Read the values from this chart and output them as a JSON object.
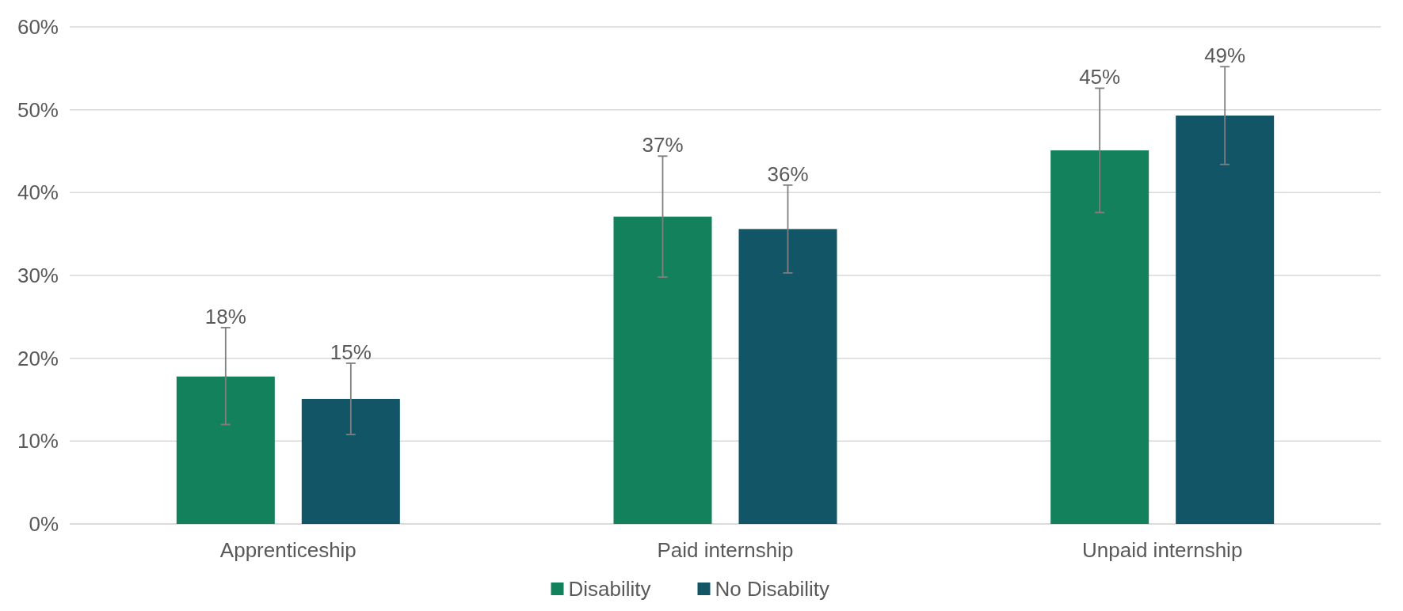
{
  "chart_data": {
    "type": "bar",
    "categories": [
      "Apprenticeship",
      "Paid internship",
      "Unpaid internship"
    ],
    "series": [
      {
        "name": "Disability",
        "color": "#13825c",
        "values": [
          17.8,
          37.1,
          45.1
        ],
        "errors": [
          [
            12,
            23.7
          ],
          [
            29.8,
            44.4
          ],
          [
            37.6,
            52.6
          ]
        ],
        "value_labels": [
          "18%",
          "37%",
          "45%"
        ]
      },
      {
        "name": "No Disability",
        "color": "#115566",
        "values": [
          15.1,
          35.6,
          49.3
        ],
        "errors": [
          [
            10.8,
            19.4
          ],
          [
            30.3,
            40.9
          ],
          [
            43.4,
            55.2
          ]
        ],
        "value_labels": [
          "15%",
          "36%",
          "49%"
        ]
      }
    ],
    "ylim": [
      0,
      60
    ],
    "yticks": [
      {
        "value": 0,
        "label": "0%"
      },
      {
        "value": 10,
        "label": "10%"
      },
      {
        "value": 20,
        "label": "20%"
      },
      {
        "value": 30,
        "label": "30%"
      },
      {
        "value": 40,
        "label": "40%"
      },
      {
        "value": 50,
        "label": "50%"
      },
      {
        "value": 60,
        "label": "60%"
      }
    ],
    "grid": "y",
    "legend": "bottom"
  }
}
